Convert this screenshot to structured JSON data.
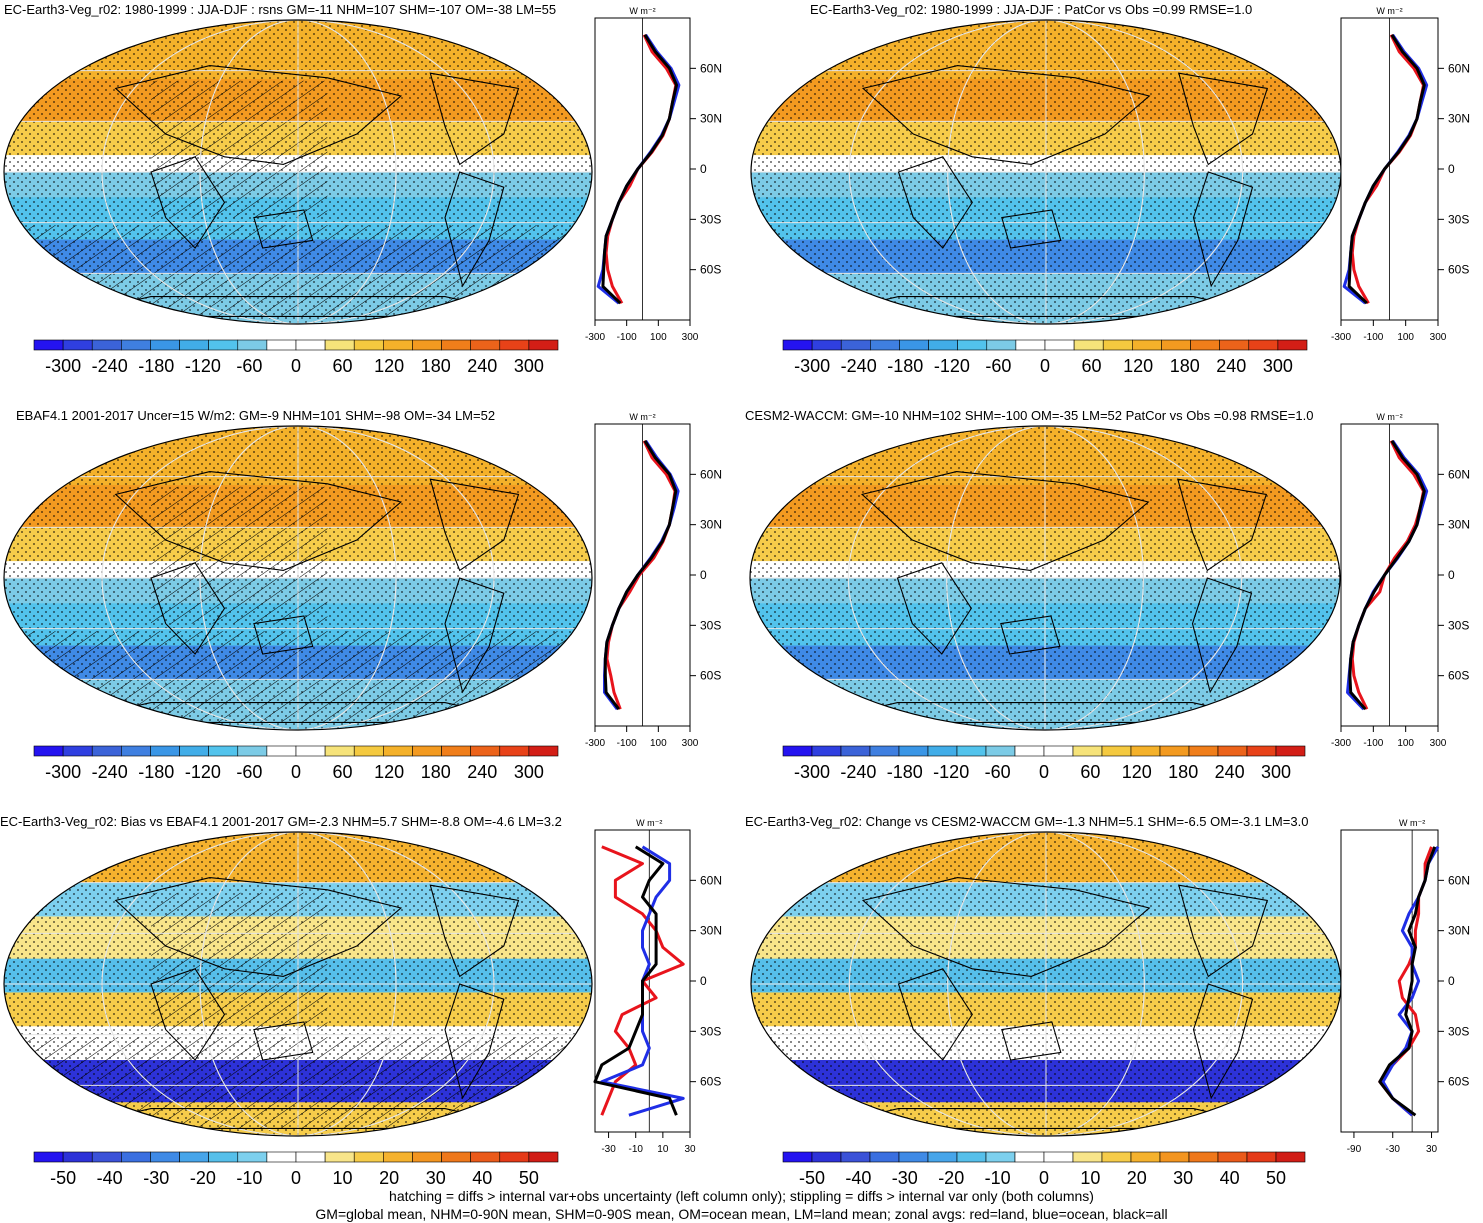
{
  "figure": {
    "footer_lines": [
      "hatching = diffs > internal var+obs uncertainty (left column only); stippling = diffs > internal var only (both columns)",
      "GM=global mean, NHM=0-90N mean, SHM=0-90S mean, OM=ocean mean, LM=land mean; zonal avgs: red=land, blue=ocean, black=all"
    ]
  },
  "colors": {
    "land": "#e8141c",
    "ocean": "#1f2ee6",
    "all": "#000000"
  },
  "panels": [
    {
      "id": "p1",
      "title": "EC-Earth3-Veg_r02: 1980-1999 : JJA-DJF : rsns GM=-11 NHM=107 SHM=-107 OM=-38 LM=55",
      "kind": "abs",
      "hatch": true,
      "zonal_unit": "W m⁻²",
      "colorbar": {
        "labels": [
          "-300",
          "-240",
          "-180",
          "-120",
          "-60",
          "0",
          "60",
          "120",
          "180",
          "240",
          "300"
        ]
      },
      "zonal_xticks": [
        "-300",
        "-100",
        "100",
        "300"
      ],
      "lat_labels": [
        "60N",
        "30N",
        "0",
        "30S",
        "60S"
      ]
    },
    {
      "id": "p2",
      "title": "EC-Earth3-Veg_r02: 1980-1999 : JJA-DJF : PatCor vs Obs =0.99 RMSE=1.0",
      "kind": "abs",
      "hatch": false,
      "zonal_unit": "W m⁻²",
      "colorbar": {
        "labels": [
          "-300",
          "-240",
          "-180",
          "-120",
          "-60",
          "0",
          "60",
          "120",
          "180",
          "240",
          "300"
        ]
      },
      "zonal_xticks": [
        "-300",
        "-100",
        "100",
        "300"
      ],
      "lat_labels": [
        "60N",
        "30N",
        "0",
        "30S",
        "60S"
      ]
    },
    {
      "id": "p3",
      "title": "EBAF4.1 2001-2017 Uncer=15 W/m2: GM=-9 NHM=101 SHM=-98 OM=-34 LM=52",
      "kind": "abs",
      "hatch": true,
      "zonal_unit": "W m⁻²",
      "colorbar": {
        "labels": [
          "-300",
          "-240",
          "-180",
          "-120",
          "-60",
          "0",
          "60",
          "120",
          "180",
          "240",
          "300"
        ]
      },
      "zonal_xticks": [
        "-300",
        "-100",
        "100",
        "300"
      ],
      "lat_labels": [
        "60N",
        "30N",
        "0",
        "30S",
        "60S"
      ]
    },
    {
      "id": "p4",
      "title": "CESM2-WACCM: GM=-10 NHM=102 SHM=-100 OM=-35 LM=52 PatCor vs Obs =0.98 RMSE=1.0",
      "kind": "abs",
      "hatch": false,
      "zonal_unit": "W m⁻²",
      "colorbar": {
        "labels": [
          "-300",
          "-240",
          "-180",
          "-120",
          "-60",
          "0",
          "60",
          "120",
          "180",
          "240",
          "300"
        ]
      },
      "zonal_xticks": [
        "-300",
        "-100",
        "100",
        "300"
      ],
      "lat_labels": [
        "60N",
        "30N",
        "0",
        "30S",
        "60S"
      ]
    },
    {
      "id": "p5",
      "title": "EC-Earth3-Veg_r02: Bias vs EBAF4.1 2001-2017 GM=-2.3 NHM=5.7 SHM=-8.8 OM=-4.6 LM=3.2",
      "kind": "diff",
      "hatch": true,
      "zonal_unit": "W m⁻²",
      "colorbar": {
        "labels": [
          "-50",
          "-40",
          "-30",
          "-20",
          "-10",
          "0",
          "10",
          "20",
          "30",
          "40",
          "50"
        ]
      },
      "zonal_xticks": [
        "-30",
        "-10",
        "10",
        "30"
      ],
      "lat_labels": [
        "60N",
        "30N",
        "0",
        "30S",
        "60S"
      ]
    },
    {
      "id": "p6",
      "title": "EC-Earth3-Veg_r02: Change vs CESM2-WACCM GM=-1.3 NHM=5.1 SHM=-6.5 OM=-3.1 LM=3.0",
      "kind": "diff",
      "hatch": false,
      "zonal_unit": "W m⁻²",
      "colorbar": {
        "labels": [
          "-50",
          "-40",
          "-30",
          "-20",
          "-10",
          "0",
          "10",
          "20",
          "30",
          "40",
          "50"
        ]
      },
      "zonal_xticks": [
        "-90",
        "-30",
        "30"
      ],
      "lat_labels": [
        "60N",
        "30N",
        "0",
        "30S",
        "60S"
      ]
    }
  ],
  "chart_data": [
    {
      "type": "heatmap",
      "title": "EC-Earth3-Veg_r02: 1980-1999 : JJA-DJF : rsns GM=-11 NHM=107 SHM=-107 OM=-38 LM=55",
      "colorbar_range": [
        -300,
        300
      ],
      "zonal_mean": {
        "lat": [
          80,
          70,
          60,
          50,
          40,
          30,
          20,
          10,
          0,
          -10,
          -20,
          -30,
          -40,
          -50,
          -60,
          -70,
          -80
        ],
        "land": [
          10,
          60,
          150,
          210,
          190,
          170,
          130,
          60,
          -30,
          -80,
          -150,
          -190,
          -220,
          -230,
          -220,
          -190,
          -130
        ],
        "ocean": [
          20,
          90,
          180,
          230,
          200,
          170,
          120,
          50,
          -30,
          -100,
          -150,
          -190,
          -230,
          -240,
          -250,
          -280,
          -150
        ],
        "all": [
          15,
          80,
          170,
          215,
          190,
          170,
          125,
          55,
          -30,
          -100,
          -150,
          -190,
          -230,
          -240,
          -245,
          -250,
          -140
        ]
      }
    },
    {
      "type": "heatmap",
      "title": "EC-Earth3-Veg_r02: 1980-1999 : JJA-DJF : PatCor vs Obs =0.99 RMSE=1.0",
      "colorbar_range": [
        -300,
        300
      ],
      "zonal_mean": {
        "lat": [
          80,
          70,
          60,
          50,
          40,
          30,
          20,
          10,
          0,
          -10,
          -20,
          -30,
          -40,
          -50,
          -60,
          -70,
          -80
        ],
        "land": [
          10,
          60,
          150,
          210,
          190,
          170,
          130,
          60,
          -30,
          -80,
          -150,
          -190,
          -220,
          -230,
          -220,
          -190,
          -130
        ],
        "ocean": [
          20,
          90,
          180,
          230,
          200,
          170,
          120,
          50,
          -30,
          -100,
          -150,
          -190,
          -230,
          -240,
          -250,
          -280,
          -150
        ],
        "all": [
          15,
          80,
          170,
          215,
          190,
          170,
          125,
          55,
          -30,
          -100,
          -150,
          -190,
          -230,
          -240,
          -245,
          -250,
          -140
        ]
      }
    },
    {
      "type": "heatmap",
      "title": "EBAF4.1 2001-2017 Uncer=15 W/m2: GM=-9 NHM=101 SHM=-98 OM=-34 LM=52",
      "colorbar_range": [
        -300,
        300
      ],
      "zonal_mean": {
        "lat": [
          80,
          70,
          60,
          50,
          40,
          30,
          20,
          10,
          0,
          -10,
          -20,
          -30,
          -40,
          -50,
          -60,
          -70,
          -80
        ],
        "land": [
          10,
          60,
          150,
          205,
          190,
          170,
          130,
          70,
          -20,
          -80,
          -150,
          -190,
          -215,
          -225,
          -200,
          -180,
          -140
        ],
        "ocean": [
          20,
          90,
          175,
          225,
          200,
          170,
          120,
          50,
          -30,
          -100,
          -150,
          -190,
          -225,
          -235,
          -240,
          -240,
          -160
        ],
        "all": [
          15,
          80,
          170,
          210,
          190,
          170,
          125,
          55,
          -30,
          -100,
          -150,
          -190,
          -225,
          -235,
          -235,
          -230,
          -150
        ]
      }
    },
    {
      "type": "heatmap",
      "title": "CESM2-WACCM: GM=-10 NHM=102 SHM=-100 OM=-35 LM=52 PatCor vs Obs =0.98 RMSE=1.0",
      "colorbar_range": [
        -300,
        300
      ],
      "zonal_mean": {
        "lat": [
          80,
          70,
          60,
          50,
          40,
          30,
          20,
          10,
          0,
          -10,
          -20,
          -30,
          -40,
          -50,
          -60,
          -70,
          -80
        ],
        "land": [
          10,
          60,
          150,
          210,
          190,
          160,
          110,
          30,
          -30,
          -60,
          -150,
          -190,
          -220,
          -230,
          -220,
          -190,
          -140
        ],
        "ocean": [
          20,
          90,
          180,
          230,
          200,
          170,
          120,
          50,
          -30,
          -100,
          -150,
          -190,
          -225,
          -240,
          -250,
          -260,
          -160
        ],
        "all": [
          15,
          80,
          170,
          215,
          190,
          170,
          120,
          45,
          -30,
          -95,
          -150,
          -190,
          -225,
          -240,
          -245,
          -240,
          -150
        ]
      }
    },
    {
      "type": "heatmap",
      "title": "EC-Earth3-Veg_r02: Bias vs EBAF4.1 2001-2017 GM=-2.3 NHM=5.7 SHM=-8.8 OM=-4.6 LM=3.2",
      "colorbar_range": [
        -50,
        50
      ],
      "zonal_mean": {
        "lat": [
          80,
          70,
          60,
          50,
          40,
          30,
          20,
          10,
          0,
          -10,
          -20,
          -30,
          -40,
          -50,
          -60,
          -70,
          -80
        ],
        "land": [
          -35,
          -5,
          -25,
          -25,
          -5,
          5,
          10,
          25,
          -5,
          5,
          -20,
          -25,
          -15,
          -10,
          -25,
          -30,
          -35
        ],
        "ocean": [
          -5,
          15,
          15,
          5,
          0,
          -5,
          -5,
          0,
          -5,
          -5,
          -5,
          -5,
          0,
          -5,
          -35,
          25,
          -15
        ],
        "all": [
          -10,
          10,
          0,
          -5,
          5,
          5,
          5,
          5,
          -5,
          -5,
          -5,
          -10,
          -15,
          -35,
          -45,
          15,
          20
        ]
      }
    },
    {
      "type": "heatmap",
      "title": "EC-Earth3-Veg_r02: Change vs CESM2-WACCM GM=-1.3 NHM=5.1 SHM=-6.5 OM=-3.1 LM=3.0",
      "colorbar_range": [
        -50,
        50
      ],
      "zonal_mean": {
        "lat": [
          80,
          70,
          60,
          50,
          40,
          30,
          20,
          10,
          0,
          -10,
          -20,
          -30,
          -40,
          -50,
          -60,
          -70,
          -80
        ],
        "land": [
          30,
          20,
          20,
          10,
          10,
          5,
          5,
          -5,
          -20,
          -15,
          5,
          10,
          -5,
          -30,
          -50,
          -30,
          0
        ],
        "ocean": [
          40,
          25,
          20,
          10,
          -5,
          -15,
          0,
          0,
          10,
          0,
          -20,
          0,
          -10,
          -30,
          -45,
          -30,
          0
        ],
        "all": [
          35,
          25,
          20,
          10,
          5,
          -5,
          5,
          0,
          0,
          -5,
          -10,
          0,
          -5,
          -35,
          -50,
          -30,
          5
        ]
      }
    }
  ]
}
